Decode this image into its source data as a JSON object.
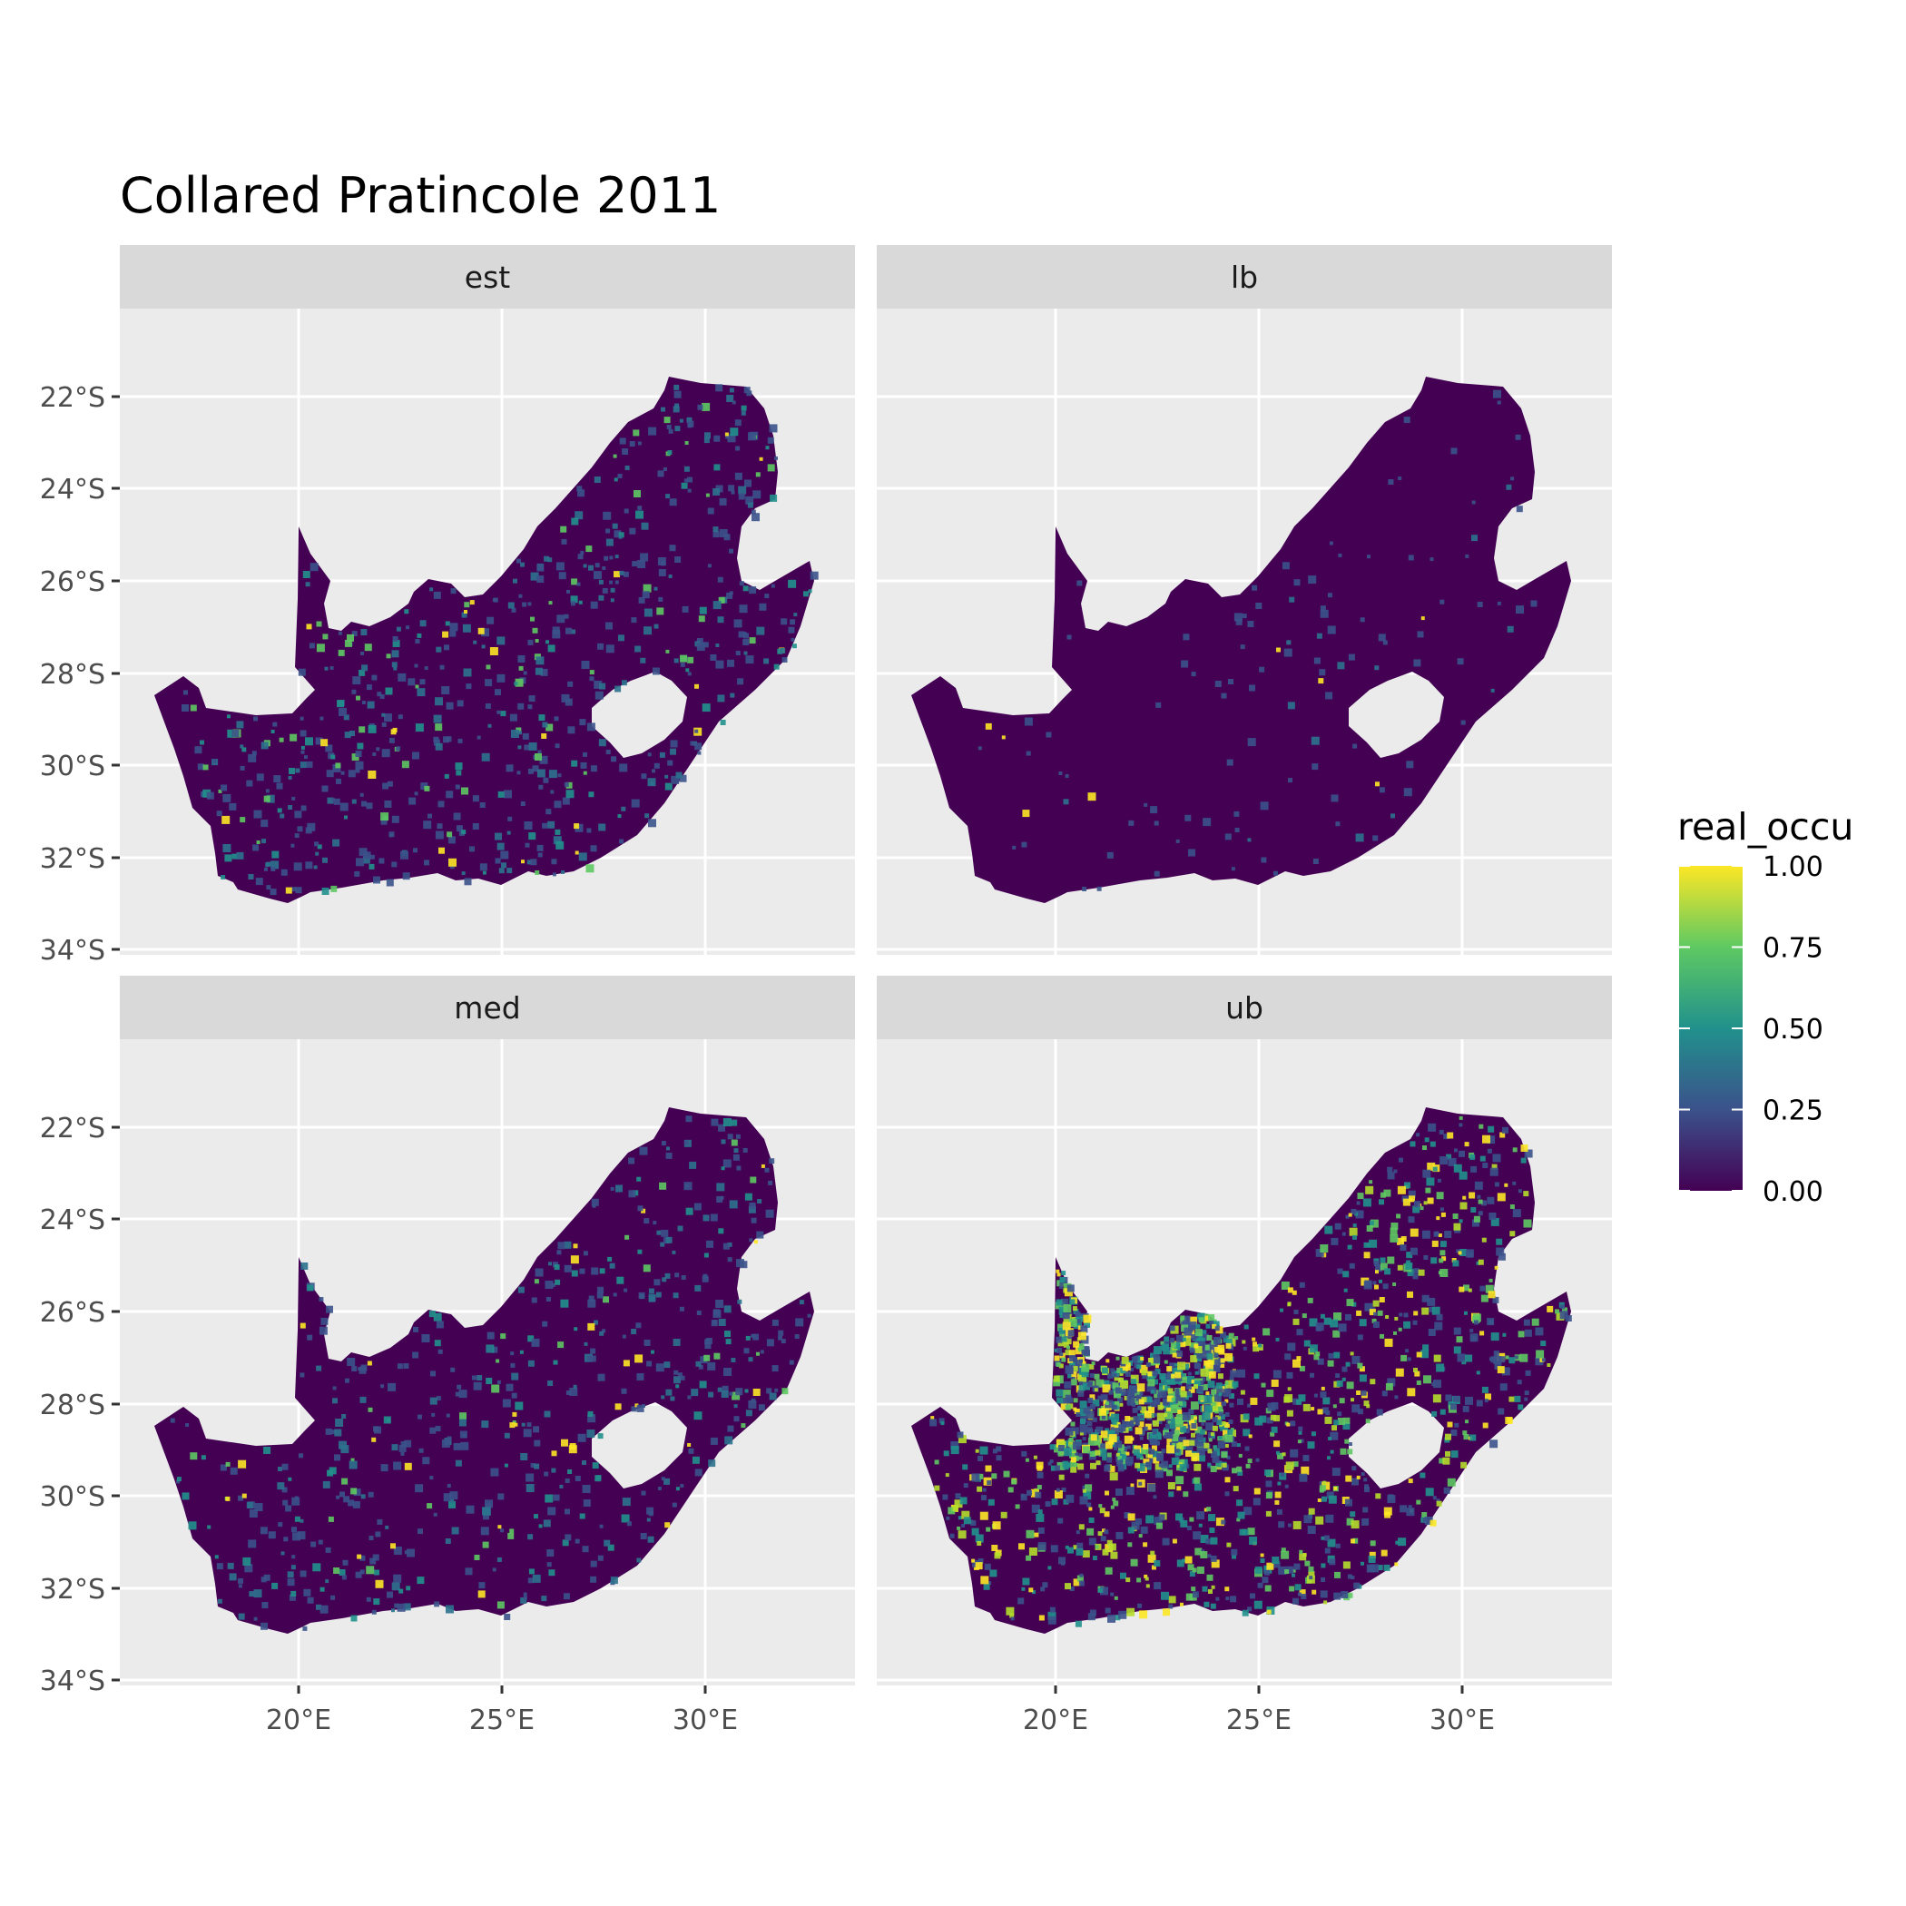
{
  "title": "Collared Pratincole 2011",
  "panels": [
    {
      "label": "est",
      "style": "est"
    },
    {
      "label": "lb",
      "style": "lb"
    },
    {
      "label": "med",
      "style": "med"
    },
    {
      "label": "ub",
      "style": "ub"
    }
  ],
  "x_ticks": [
    "20°E",
    "25°E",
    "30°E"
  ],
  "y_ticks": [
    "22°S",
    "24°S",
    "26°S",
    "28°S",
    "30°S",
    "32°S",
    "34°S"
  ],
  "legend": {
    "title": "real_occu",
    "labels": [
      "1.00",
      "0.75",
      "0.50",
      "0.25",
      "0.00"
    ],
    "colors": [
      "#fde725",
      "#5ec962",
      "#21918c",
      "#3b528b",
      "#440154"
    ]
  },
  "colors": {
    "panel_background": "#ebebeb",
    "grid": "#ffffff",
    "strip_background": "#d9d9d9",
    "land_base": "#440154"
  }
}
